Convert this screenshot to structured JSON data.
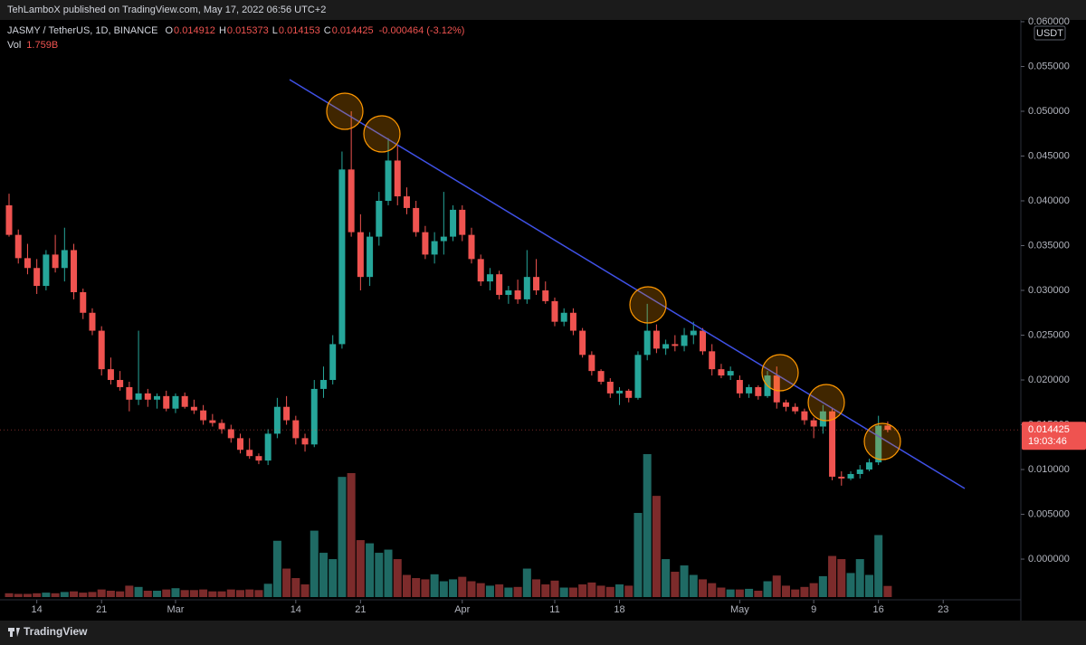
{
  "header": "TehLamboX published on TradingView.com, May 17, 2022 06:56 UTC+2",
  "footer": "TradingView",
  "chart_data": {
    "type": "candlestick",
    "legend": {
      "symbol": "JASMY / TetherUS, 1D, BINANCE",
      "ohlc": [
        {
          "key": "O",
          "value": "0.014912"
        },
        {
          "key": "H",
          "value": "0.015373"
        },
        {
          "key": "L",
          "value": "0.014153"
        },
        {
          "key": "C",
          "value": "0.014425"
        }
      ],
      "change": "-0.000464 (-3.12%)",
      "volume_key": "Vol",
      "volume_value": "1.759B"
    },
    "currency": "USDT",
    "price_label": "0.014425",
    "countdown": "19:03:46",
    "up_color": "#26a69a",
    "down_color": "#ef5350",
    "volume_up_color": "#1f6a64",
    "volume_down_color": "#7c2b2b",
    "grid": false,
    "ylim": [
      -0.00444,
      0.0602
    ],
    "yticks": [
      {
        "value": 0,
        "label": "0.000000"
      },
      {
        "value": 0.005,
        "label": "0.005000"
      },
      {
        "value": 0.01,
        "label": "0.010000"
      },
      {
        "value": 0.015,
        "label": "0.015000"
      },
      {
        "value": 0.02,
        "label": "0.020000"
      },
      {
        "value": 0.025,
        "label": "0.025000"
      },
      {
        "value": 0.03,
        "label": "0.030000"
      },
      {
        "value": 0.035,
        "label": "0.035000"
      },
      {
        "value": 0.04,
        "label": "0.040000"
      },
      {
        "value": 0.045,
        "label": "0.045000"
      },
      {
        "value": 0.05,
        "label": "0.050000"
      },
      {
        "value": 0.055,
        "label": "0.055000"
      },
      {
        "value": 0.06,
        "label": "0.060000"
      }
    ],
    "xticks": [
      {
        "value": "Feb 14",
        "label": "14"
      },
      {
        "value": "Feb 21",
        "label": "21"
      },
      {
        "value": "Mar 1",
        "label": "Mar"
      },
      {
        "value": "Mar 14",
        "label": "14"
      },
      {
        "value": "Mar 21",
        "label": "21"
      },
      {
        "value": "Apr 1",
        "label": "Apr"
      },
      {
        "value": "Apr 11",
        "label": "11"
      },
      {
        "value": "Apr 18",
        "label": "18"
      },
      {
        "value": "May 1",
        "label": "May"
      },
      {
        "value": "May 9",
        "label": "9"
      },
      {
        "value": "May 16",
        "label": "16"
      },
      {
        "value": "May 23",
        "label": "23"
      }
    ],
    "candles": [
      {
        "date": "Feb 11",
        "open": 0.0395,
        "high": 0.0408,
        "low": 0.036,
        "close": 0.0362,
        "volume": 0.6
      },
      {
        "date": "Feb 12",
        "open": 0.0362,
        "high": 0.0368,
        "low": 0.033,
        "close": 0.0336,
        "volume": 0.5
      },
      {
        "date": "Feb 13",
        "open": 0.0336,
        "high": 0.0352,
        "low": 0.0318,
        "close": 0.0325,
        "volume": 0.5
      },
      {
        "date": "Feb 14",
        "open": 0.0325,
        "high": 0.0335,
        "low": 0.0296,
        "close": 0.0305,
        "volume": 0.6
      },
      {
        "date": "Feb 15",
        "open": 0.0305,
        "high": 0.0345,
        "low": 0.03,
        "close": 0.034,
        "volume": 0.7
      },
      {
        "date": "Feb 16",
        "open": 0.034,
        "high": 0.0362,
        "low": 0.032,
        "close": 0.0325,
        "volume": 0.6
      },
      {
        "date": "Feb 17",
        "open": 0.0325,
        "high": 0.037,
        "low": 0.031,
        "close": 0.0345,
        "volume": 0.8
      },
      {
        "date": "Feb 18",
        "open": 0.0345,
        "high": 0.0352,
        "low": 0.029,
        "close": 0.0298,
        "volume": 0.9
      },
      {
        "date": "Feb 19",
        "open": 0.0298,
        "high": 0.0302,
        "low": 0.0268,
        "close": 0.0275,
        "volume": 0.7
      },
      {
        "date": "Feb 20",
        "open": 0.0275,
        "high": 0.028,
        "low": 0.025,
        "close": 0.0255,
        "volume": 0.8
      },
      {
        "date": "Feb 21",
        "open": 0.0255,
        "high": 0.026,
        "low": 0.0205,
        "close": 0.0212,
        "volume": 1.2
      },
      {
        "date": "Feb 22",
        "open": 0.0212,
        "high": 0.0225,
        "low": 0.0195,
        "close": 0.02,
        "volume": 1.0
      },
      {
        "date": "Feb 23",
        "open": 0.02,
        "high": 0.021,
        "low": 0.0188,
        "close": 0.0192,
        "volume": 0.9
      },
      {
        "date": "Feb 24",
        "open": 0.0192,
        "high": 0.0198,
        "low": 0.0165,
        "close": 0.0178,
        "volume": 1.8
      },
      {
        "date": "Feb 25",
        "open": 0.0178,
        "high": 0.0255,
        "low": 0.0172,
        "close": 0.0185,
        "volume": 1.6
      },
      {
        "date": "Feb 26",
        "open": 0.0185,
        "high": 0.019,
        "low": 0.017,
        "close": 0.0178,
        "volume": 1.0
      },
      {
        "date": "Feb 27",
        "open": 0.0178,
        "high": 0.0185,
        "low": 0.0168,
        "close": 0.0182,
        "volume": 1.0
      },
      {
        "date": "Feb 28",
        "open": 0.0182,
        "high": 0.0188,
        "low": 0.0165,
        "close": 0.0168,
        "volume": 1.2
      },
      {
        "date": "Mar 1",
        "open": 0.0168,
        "high": 0.0185,
        "low": 0.0163,
        "close": 0.0182,
        "volume": 1.4
      },
      {
        "date": "Mar 2",
        "open": 0.0182,
        "high": 0.0186,
        "low": 0.0168,
        "close": 0.017,
        "volume": 1.1
      },
      {
        "date": "Mar 3",
        "open": 0.017,
        "high": 0.0178,
        "low": 0.0162,
        "close": 0.0166,
        "volume": 1.1
      },
      {
        "date": "Mar 4",
        "open": 0.0166,
        "high": 0.0172,
        "low": 0.015,
        "close": 0.0155,
        "volume": 1.2
      },
      {
        "date": "Mar 5",
        "open": 0.0155,
        "high": 0.0162,
        "low": 0.0148,
        "close": 0.0152,
        "volume": 0.9
      },
      {
        "date": "Mar 6",
        "open": 0.0152,
        "high": 0.0156,
        "low": 0.014,
        "close": 0.0145,
        "volume": 0.9
      },
      {
        "date": "Mar 7",
        "open": 0.0145,
        "high": 0.015,
        "low": 0.013,
        "close": 0.0135,
        "volume": 1.2
      },
      {
        "date": "Mar 8",
        "open": 0.0135,
        "high": 0.014,
        "low": 0.0118,
        "close": 0.0122,
        "volume": 1.1
      },
      {
        "date": "Mar 9",
        "open": 0.0122,
        "high": 0.0135,
        "low": 0.0112,
        "close": 0.0115,
        "volume": 1.2
      },
      {
        "date": "Mar 10",
        "open": 0.0115,
        "high": 0.0118,
        "low": 0.0106,
        "close": 0.011,
        "volume": 1.1
      },
      {
        "date": "Mar 11",
        "open": 0.011,
        "high": 0.0145,
        "low": 0.0105,
        "close": 0.014,
        "volume": 2.1
      },
      {
        "date": "Mar 12",
        "open": 0.014,
        "high": 0.018,
        "low": 0.0135,
        "close": 0.017,
        "volume": 8.9
      },
      {
        "date": "Mar 13",
        "open": 0.017,
        "high": 0.0182,
        "low": 0.015,
        "close": 0.0155,
        "volume": 4.5
      },
      {
        "date": "Mar 14",
        "open": 0.0155,
        "high": 0.016,
        "low": 0.0128,
        "close": 0.0135,
        "volume": 3.0
      },
      {
        "date": "Mar 15",
        "open": 0.0135,
        "high": 0.014,
        "low": 0.012,
        "close": 0.0128,
        "volume": 2.0
      },
      {
        "date": "Mar 16",
        "open": 0.0128,
        "high": 0.02,
        "low": 0.0125,
        "close": 0.019,
        "volume": 10.5
      },
      {
        "date": "Mar 17",
        "open": 0.019,
        "high": 0.0215,
        "low": 0.018,
        "close": 0.02,
        "volume": 7.0
      },
      {
        "date": "Mar 18",
        "open": 0.02,
        "high": 0.025,
        "low": 0.0195,
        "close": 0.024,
        "volume": 6.0
      },
      {
        "date": "Mar 19",
        "open": 0.024,
        "high": 0.0455,
        "low": 0.0235,
        "close": 0.0435,
        "volume": 19.0
      },
      {
        "date": "Mar 20",
        "open": 0.0435,
        "high": 0.05,
        "low": 0.036,
        "close": 0.0365,
        "volume": 19.6
      },
      {
        "date": "Mar 21",
        "open": 0.0365,
        "high": 0.0385,
        "low": 0.03,
        "close": 0.0315,
        "volume": 9.0
      },
      {
        "date": "Mar 22",
        "open": 0.0315,
        "high": 0.0365,
        "low": 0.0305,
        "close": 0.036,
        "volume": 8.5
      },
      {
        "date": "Mar 23",
        "open": 0.036,
        "high": 0.041,
        "low": 0.035,
        "close": 0.04,
        "volume": 7.0
      },
      {
        "date": "Mar 24",
        "open": 0.04,
        "high": 0.047,
        "low": 0.0395,
        "close": 0.0445,
        "volume": 7.5
      },
      {
        "date": "Mar 25",
        "open": 0.0445,
        "high": 0.0462,
        "low": 0.0395,
        "close": 0.0405,
        "volume": 6.0
      },
      {
        "date": "Mar 26",
        "open": 0.0405,
        "high": 0.0415,
        "low": 0.0385,
        "close": 0.0392,
        "volume": 3.5
      },
      {
        "date": "Mar 27",
        "open": 0.0392,
        "high": 0.04,
        "low": 0.036,
        "close": 0.0365,
        "volume": 3.0
      },
      {
        "date": "Mar 28",
        "open": 0.0365,
        "high": 0.0372,
        "low": 0.0335,
        "close": 0.034,
        "volume": 2.8
      },
      {
        "date": "Mar 29",
        "open": 0.034,
        "high": 0.0365,
        "low": 0.033,
        "close": 0.0355,
        "volume": 3.6
      },
      {
        "date": "Mar 30",
        "open": 0.0355,
        "high": 0.041,
        "low": 0.034,
        "close": 0.036,
        "volume": 2.5
      },
      {
        "date": "Mar 31",
        "open": 0.036,
        "high": 0.0395,
        "low": 0.0355,
        "close": 0.039,
        "volume": 2.8
      },
      {
        "date": "Apr 1",
        "open": 0.039,
        "high": 0.0395,
        "low": 0.0355,
        "close": 0.0362,
        "volume": 3.2
      },
      {
        "date": "Apr 2",
        "open": 0.0362,
        "high": 0.037,
        "low": 0.033,
        "close": 0.0335,
        "volume": 2.5
      },
      {
        "date": "Apr 3",
        "open": 0.0335,
        "high": 0.034,
        "low": 0.0305,
        "close": 0.031,
        "volume": 2.2
      },
      {
        "date": "Apr 4",
        "open": 0.031,
        "high": 0.0325,
        "low": 0.03,
        "close": 0.0318,
        "volume": 1.8
      },
      {
        "date": "Apr 5",
        "open": 0.0318,
        "high": 0.0322,
        "low": 0.029,
        "close": 0.0295,
        "volume": 2.0
      },
      {
        "date": "Apr 6",
        "open": 0.0295,
        "high": 0.0305,
        "low": 0.0285,
        "close": 0.03,
        "volume": 1.5
      },
      {
        "date": "Apr 7",
        "open": 0.03,
        "high": 0.0312,
        "low": 0.0285,
        "close": 0.029,
        "volume": 1.6
      },
      {
        "date": "Apr 8",
        "open": 0.029,
        "high": 0.0345,
        "low": 0.0285,
        "close": 0.0315,
        "volume": 4.5
      },
      {
        "date": "Apr 9",
        "open": 0.0315,
        "high": 0.0335,
        "low": 0.0295,
        "close": 0.03,
        "volume": 2.8
      },
      {
        "date": "Apr 10",
        "open": 0.03,
        "high": 0.031,
        "low": 0.0285,
        "close": 0.0288,
        "volume": 2.0
      },
      {
        "date": "Apr 11",
        "open": 0.0288,
        "high": 0.0292,
        "low": 0.026,
        "close": 0.0265,
        "volume": 2.6
      },
      {
        "date": "Apr 12",
        "open": 0.0265,
        "high": 0.028,
        "low": 0.026,
        "close": 0.0275,
        "volume": 1.5
      },
      {
        "date": "Apr 13",
        "open": 0.0275,
        "high": 0.028,
        "low": 0.025,
        "close": 0.0255,
        "volume": 1.5
      },
      {
        "date": "Apr 14",
        "open": 0.0255,
        "high": 0.0258,
        "low": 0.0225,
        "close": 0.0228,
        "volume": 2.0
      },
      {
        "date": "Apr 15",
        "open": 0.0228,
        "high": 0.0232,
        "low": 0.0205,
        "close": 0.021,
        "volume": 2.3
      },
      {
        "date": "Apr 16",
        "open": 0.021,
        "high": 0.0212,
        "low": 0.0195,
        "close": 0.0198,
        "volume": 1.8
      },
      {
        "date": "Apr 17",
        "open": 0.0198,
        "high": 0.0202,
        "low": 0.018,
        "close": 0.0185,
        "volume": 1.6
      },
      {
        "date": "Apr 18",
        "open": 0.0185,
        "high": 0.0192,
        "low": 0.0172,
        "close": 0.0188,
        "volume": 2.0
      },
      {
        "date": "Apr 19",
        "open": 0.0188,
        "high": 0.019,
        "low": 0.0175,
        "close": 0.018,
        "volume": 1.8
      },
      {
        "date": "Apr 20",
        "open": 0.018,
        "high": 0.0232,
        "low": 0.0178,
        "close": 0.0228,
        "volume": 13.3
      },
      {
        "date": "Apr 21",
        "open": 0.0228,
        "high": 0.0285,
        "low": 0.0222,
        "close": 0.0255,
        "volume": 22.6
      },
      {
        "date": "Apr 22",
        "open": 0.0255,
        "high": 0.0262,
        "low": 0.023,
        "close": 0.0235,
        "volume": 16.0
      },
      {
        "date": "Apr 23",
        "open": 0.0235,
        "high": 0.0245,
        "low": 0.0228,
        "close": 0.024,
        "volume": 6.0
      },
      {
        "date": "Apr 24",
        "open": 0.024,
        "high": 0.025,
        "low": 0.0232,
        "close": 0.0238,
        "volume": 4.0
      },
      {
        "date": "Apr 25",
        "open": 0.0238,
        "high": 0.0258,
        "low": 0.0232,
        "close": 0.025,
        "volume": 5.0
      },
      {
        "date": "Apr 26",
        "open": 0.025,
        "high": 0.0265,
        "low": 0.024,
        "close": 0.0255,
        "volume": 3.5
      },
      {
        "date": "Apr 27",
        "open": 0.0255,
        "high": 0.0258,
        "low": 0.0228,
        "close": 0.0232,
        "volume": 2.8
      },
      {
        "date": "Apr 28",
        "open": 0.0232,
        "high": 0.024,
        "low": 0.0205,
        "close": 0.0212,
        "volume": 2.2
      },
      {
        "date": "Apr 29",
        "open": 0.0212,
        "high": 0.0218,
        "low": 0.0202,
        "close": 0.0205,
        "volume": 1.5
      },
      {
        "date": "Apr 30",
        "open": 0.0205,
        "high": 0.0215,
        "low": 0.02,
        "close": 0.021,
        "volume": 1.2
      },
      {
        "date": "May 1",
        "open": 0.02,
        "high": 0.0205,
        "low": 0.018,
        "close": 0.0185,
        "volume": 1.2
      },
      {
        "date": "May 2",
        "open": 0.0185,
        "high": 0.0195,
        "low": 0.018,
        "close": 0.0192,
        "volume": 1.3
      },
      {
        "date": "May 3",
        "open": 0.0192,
        "high": 0.0194,
        "low": 0.0178,
        "close": 0.0182,
        "volume": 1.0
      },
      {
        "date": "May 4",
        "open": 0.0182,
        "high": 0.021,
        "low": 0.018,
        "close": 0.0205,
        "volume": 2.5
      },
      {
        "date": "May 5",
        "open": 0.0205,
        "high": 0.0215,
        "low": 0.0168,
        "close": 0.0175,
        "volume": 3.4
      },
      {
        "date": "May 6",
        "open": 0.0175,
        "high": 0.0178,
        "low": 0.0165,
        "close": 0.017,
        "volume": 1.8
      },
      {
        "date": "May 7",
        "open": 0.017,
        "high": 0.0174,
        "low": 0.0162,
        "close": 0.0165,
        "volume": 1.2
      },
      {
        "date": "May 8",
        "open": 0.0165,
        "high": 0.0168,
        "low": 0.015,
        "close": 0.0155,
        "volume": 1.6
      },
      {
        "date": "May 9",
        "open": 0.0155,
        "high": 0.0158,
        "low": 0.0135,
        "close": 0.0148,
        "volume": 2.2
      },
      {
        "date": "May 10",
        "open": 0.0148,
        "high": 0.0172,
        "low": 0.014,
        "close": 0.0165,
        "volume": 3.3
      },
      {
        "date": "May 11",
        "open": 0.0165,
        "high": 0.0168,
        "low": 0.0088,
        "close": 0.0092,
        "volume": 6.5
      },
      {
        "date": "May 12",
        "open": 0.0092,
        "high": 0.0098,
        "low": 0.0082,
        "close": 0.009,
        "volume": 6.0
      },
      {
        "date": "May 13",
        "open": 0.009,
        "high": 0.0098,
        "low": 0.0088,
        "close": 0.0095,
        "volume": 3.8
      },
      {
        "date": "May 14",
        "open": 0.0095,
        "high": 0.0105,
        "low": 0.009,
        "close": 0.01,
        "volume": 6.0
      },
      {
        "date": "May 15",
        "open": 0.01,
        "high": 0.0112,
        "low": 0.0098,
        "close": 0.0108,
        "volume": 3.5
      },
      {
        "date": "May 16",
        "open": 0.0108,
        "high": 0.016,
        "low": 0.0105,
        "close": 0.0149,
        "volume": 9.8
      },
      {
        "date": "May 17",
        "open": 0.014912,
        "high": 0.015373,
        "low": 0.014153,
        "close": 0.014425,
        "volume": 1.759
      }
    ]
  }
}
